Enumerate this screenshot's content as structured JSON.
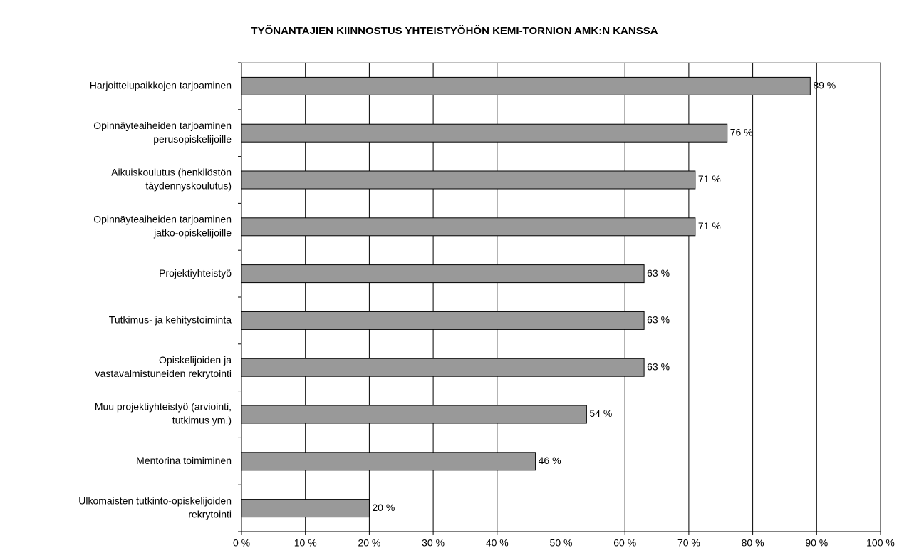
{
  "chart_data": {
    "type": "bar",
    "orientation": "horizontal",
    "title": "TYÖNANTAJIEN KIINNOSTUS YHTEISTYÖHÖN KEMI-TORNION AMK:N KANSSA",
    "categories": [
      [
        "Harjoittelupaikkojen tarjoaminen"
      ],
      [
        "Opinnäyteaiheiden tarjoaminen",
        "perusopiskelijoille"
      ],
      [
        "Aikuiskoulutus (henkilöstön",
        "täydennyskoulutus)"
      ],
      [
        "Opinnäyteaiheiden tarjoaminen",
        "jatko-opiskelijoille"
      ],
      [
        "Projektiyhteistyö"
      ],
      [
        "Tutkimus- ja kehitystoiminta"
      ],
      [
        "Opiskelijoiden ja",
        "vastavalmistuneiden rekrytointi"
      ],
      [
        "Muu projektiyhteistyö (arviointi,",
        "tutkimus ym.)"
      ],
      [
        "Mentorina toimiminen"
      ],
      [
        "Ulkomaisten tutkinto-opiskelijoiden",
        "rekrytointi"
      ]
    ],
    "values": [
      89,
      76,
      71,
      71,
      63,
      63,
      63,
      54,
      46,
      20
    ],
    "value_labels": [
      "89 %",
      "76 %",
      "71 %",
      "71 %",
      "63 %",
      "63 %",
      "63 %",
      "54 %",
      "46 %",
      "20 %"
    ],
    "color": "#999999",
    "xlim": [
      0,
      100
    ],
    "xticks": [
      {
        "value": 0,
        "label": "0 %"
      },
      {
        "value": 10,
        "label": "10 %"
      },
      {
        "value": 20,
        "label": "20 %"
      },
      {
        "value": 30,
        "label": "30 %"
      },
      {
        "value": 40,
        "label": "40 %"
      },
      {
        "value": 50,
        "label": "50 %"
      },
      {
        "value": 60,
        "label": "60 %"
      },
      {
        "value": 70,
        "label": "70 %"
      },
      {
        "value": 80,
        "label": "80 %"
      },
      {
        "value": 90,
        "label": "90 %"
      },
      {
        "value": 100,
        "label": "100 %"
      }
    ],
    "grid": true
  }
}
